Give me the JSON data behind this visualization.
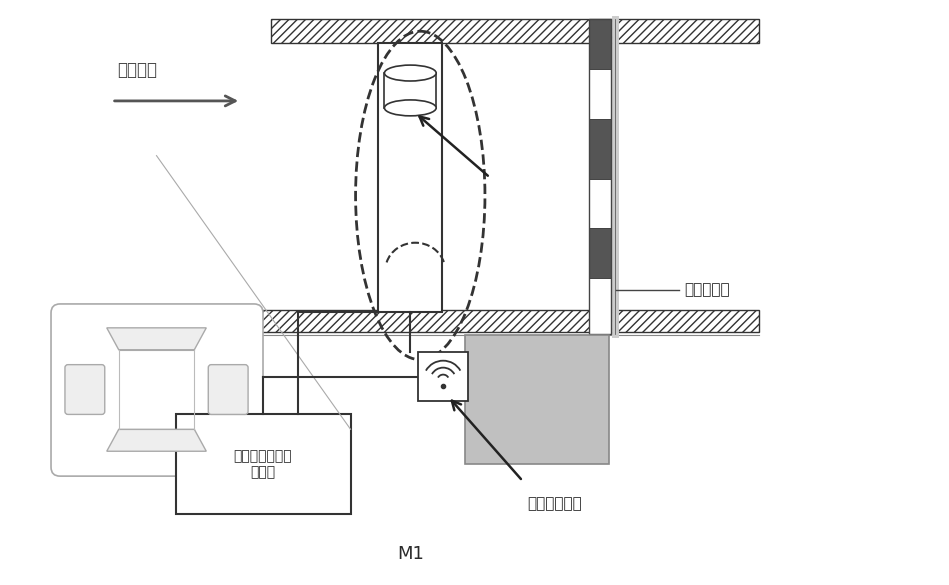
{
  "title": "M1",
  "bg_color": "#ffffff",
  "text_color": "#2a2a2a",
  "label_direction": "行车方向",
  "label_geomag": "地磁车检器",
  "label_radar": "雷达检测单元",
  "label_logic": "逻辑判断和信号\n处理器"
}
